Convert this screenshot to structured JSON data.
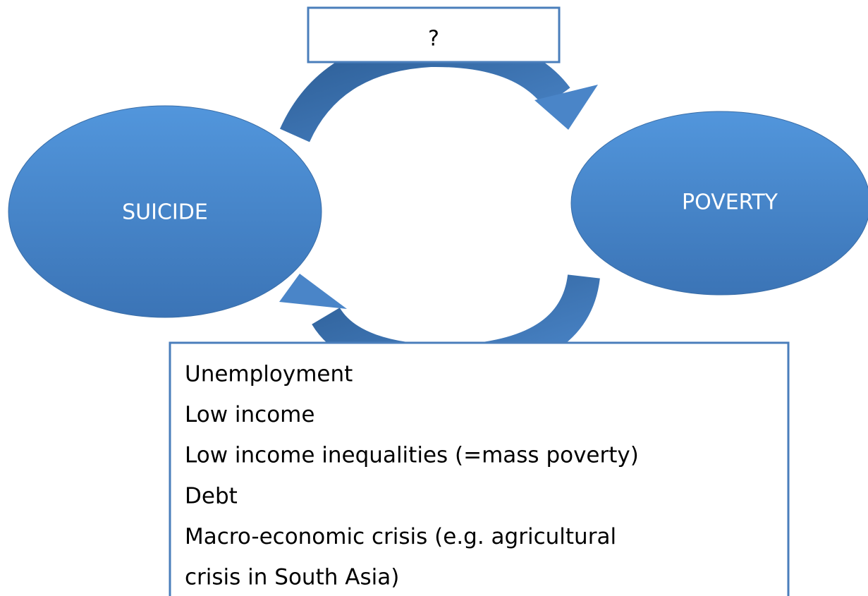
{
  "nodes": [
    {
      "label": "SUICIDE"
    },
    {
      "label": "POVERTY"
    }
  ],
  "top_box": {
    "label": "?"
  },
  "bottom_box": {
    "lines": [
      "Unemployment",
      "Low income",
      "Low income inequalities (=mass poverty)",
      "Debt",
      "Macro-economic crisis (e.g. agricultural",
      "crisis in South Asia)"
    ]
  }
}
